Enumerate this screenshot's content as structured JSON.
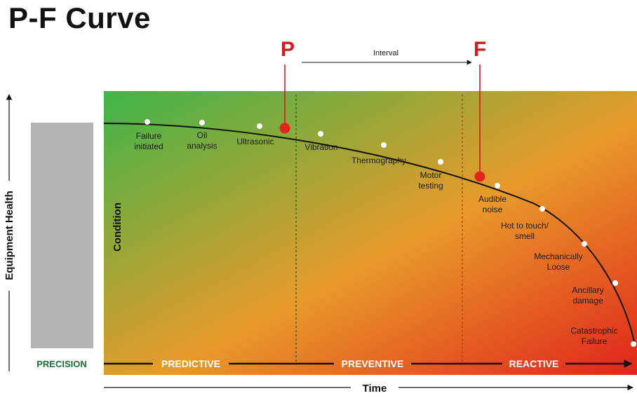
{
  "title": "P-F Curve",
  "p_label": "P",
  "f_label": "F",
  "interval_label": "Interval",
  "y_axis_label": "Equipment Health",
  "x_axis_label": "Time",
  "condition_label": "Condition",
  "precision_label": "PRECISION",
  "phases": [
    "PREDICTIVE",
    "PREVENTIVE",
    "REACTIVE"
  ],
  "colors": {
    "green": "#3db54a",
    "orange": "#e89a2a",
    "red": "#e0251c",
    "marker": "#e0251c",
    "precision": "#1f6e3a",
    "bar": "#b3b3b3"
  },
  "stages": [
    {
      "lines": [
        "Failure",
        "initiated"
      ]
    },
    {
      "lines": [
        "Oil",
        "analysis"
      ]
    },
    {
      "lines": [
        "Ultrasonic"
      ]
    },
    {
      "lines": [
        "Vibration"
      ]
    },
    {
      "lines": [
        "Thermography"
      ]
    },
    {
      "lines": [
        "Motor",
        "testing"
      ]
    },
    {
      "lines": [
        "Audible",
        "noise"
      ]
    },
    {
      "lines": [
        "Hot to touch/",
        "smell"
      ]
    },
    {
      "lines": [
        "Mechanically",
        "Loose"
      ]
    },
    {
      "lines": [
        "Ancillary",
        "damage"
      ]
    },
    {
      "lines": [
        "Catastrophic",
        "Failure"
      ]
    }
  ]
}
